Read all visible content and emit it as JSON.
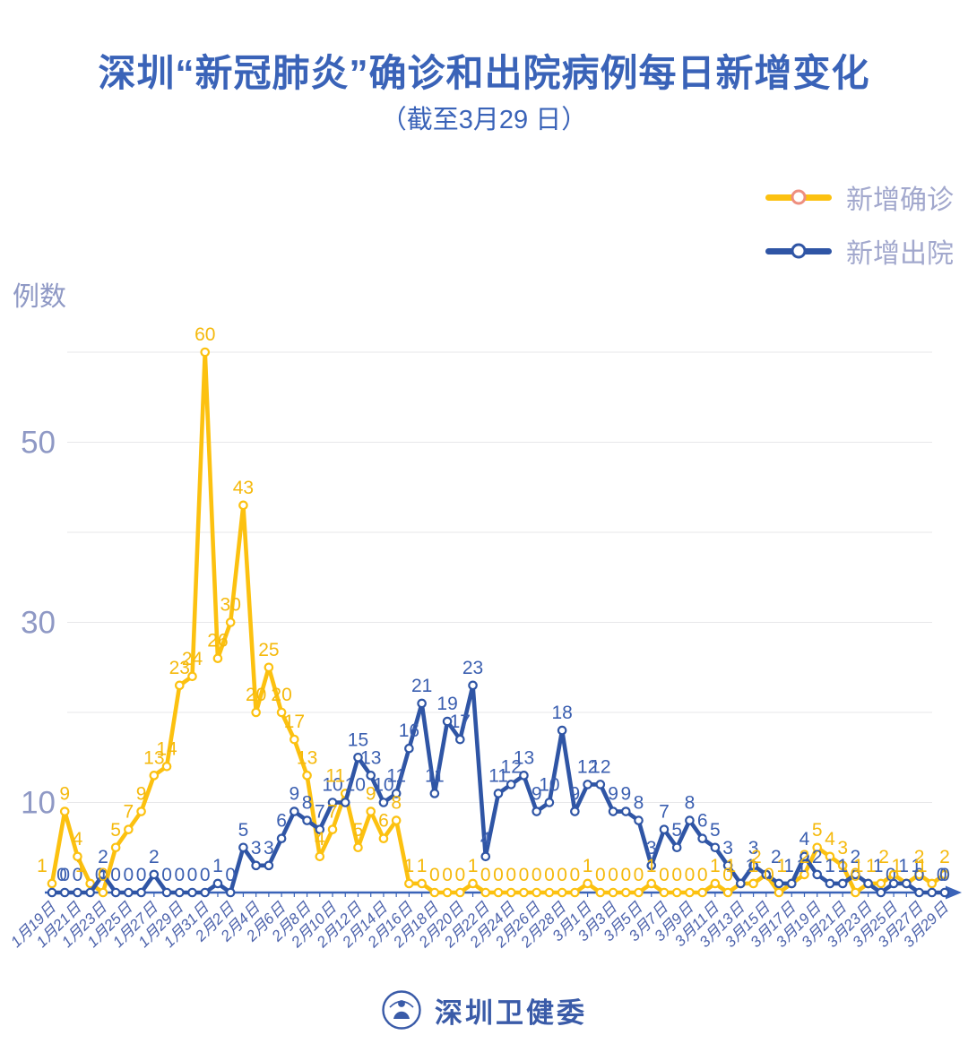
{
  "header": {
    "title": "深圳“新冠肺炎”确诊和出院病例每日新增变化",
    "subtitle": "（截至3月29 日）"
  },
  "footer": {
    "brand": "深圳卫健委",
    "logo": "person-in-ring-emblem"
  },
  "chart_data": {
    "type": "line",
    "title": "深圳“新冠肺炎”确诊和出院病例每日新增变化",
    "subtitle": "（截至3月29 日）",
    "ylabel": "例数",
    "xlabel": "",
    "ylim": [
      0,
      62
    ],
    "grid": true,
    "gridlines": [
      10,
      20,
      30,
      40,
      50,
      60
    ],
    "yticks_labeled": [
      10,
      30,
      50
    ],
    "xtick_every": 2,
    "legend_position": "top-right",
    "colors": {
      "axis": "#3A63B8",
      "grid": "#E7E7E9",
      "ytick_label": "#8F99C5",
      "xtick_label": "#4D63AC",
      "title": "#3A63B8",
      "legend_text": "#A2A8CD"
    },
    "categories": [
      "1月19日",
      "1月20日",
      "1月21日",
      "1月22日",
      "1月23日",
      "1月24日",
      "1月25日",
      "1月26日",
      "1月27日",
      "1月28日",
      "1月29日",
      "1月30日",
      "1月31日",
      "2月1日",
      "2月2日",
      "2月3日",
      "2月4日",
      "2月5日",
      "2月6日",
      "2月7日",
      "2月8日",
      "2月9日",
      "2月10日",
      "2月11日",
      "2月12日",
      "2月13日",
      "2月14日",
      "2月15日",
      "2月16日",
      "2月17日",
      "2月18日",
      "2月19日",
      "2月20日",
      "2月21日",
      "2月22日",
      "2月23日",
      "2月24日",
      "2月25日",
      "2月26日",
      "2月27日",
      "2月28日",
      "2月29日",
      "3月1日",
      "3月2日",
      "3月3日",
      "3月4日",
      "3月5日",
      "3月6日",
      "3月7日",
      "3月8日",
      "3月9日",
      "3月10日",
      "3月11日",
      "3月12日",
      "3月13日",
      "3月14日",
      "3月15日",
      "3月16日",
      "3月17日",
      "3月18日",
      "3月19日",
      "3月20日",
      "3月21日",
      "3月22日",
      "3月23日",
      "3月24日",
      "3月25日",
      "3月26日",
      "3月27日",
      "3月28日",
      "3月29日"
    ],
    "series": [
      {
        "name": "新增确诊",
        "color": "#FCC110",
        "label_color": "#F5B90D",
        "legend_dot_color": "#EE8F7F",
        "values": [
          1,
          9,
          4,
          1,
          0,
          5,
          7,
          9,
          13,
          14,
          23,
          24,
          60,
          26,
          30,
          43,
          20,
          25,
          20,
          17,
          13,
          4,
          7,
          11,
          5,
          9,
          6,
          8,
          1,
          1,
          0,
          0,
          0,
          1,
          0,
          0,
          0,
          0,
          0,
          0,
          0,
          0,
          1,
          0,
          0,
          0,
          0,
          1,
          0,
          0,
          0,
          0,
          1,
          0,
          1,
          1,
          2,
          0,
          1,
          2,
          5,
          4,
          3,
          0,
          1,
          1,
          2,
          1,
          2,
          1,
          2
        ]
      },
      {
        "name": "新增出院",
        "color": "#2F55A5",
        "label_color": "#3B5FB0",
        "legend_dot_color": "#2F55A5",
        "values": [
          0,
          0,
          0,
          0,
          2,
          0,
          0,
          0,
          2,
          0,
          0,
          0,
          0,
          1,
          0,
          5,
          3,
          3,
          6,
          9,
          8,
          7,
          10,
          10,
          15,
          13,
          10,
          11,
          16,
          21,
          11,
          19,
          17,
          23,
          4,
          11,
          12,
          13,
          9,
          10,
          18,
          9,
          12,
          12,
          9,
          9,
          8,
          3,
          7,
          5,
          8,
          6,
          5,
          3,
          1,
          3,
          2,
          1,
          1,
          4,
          2,
          1,
          1,
          2,
          1,
          0,
          1,
          1,
          0,
          0,
          0
        ]
      }
    ]
  }
}
